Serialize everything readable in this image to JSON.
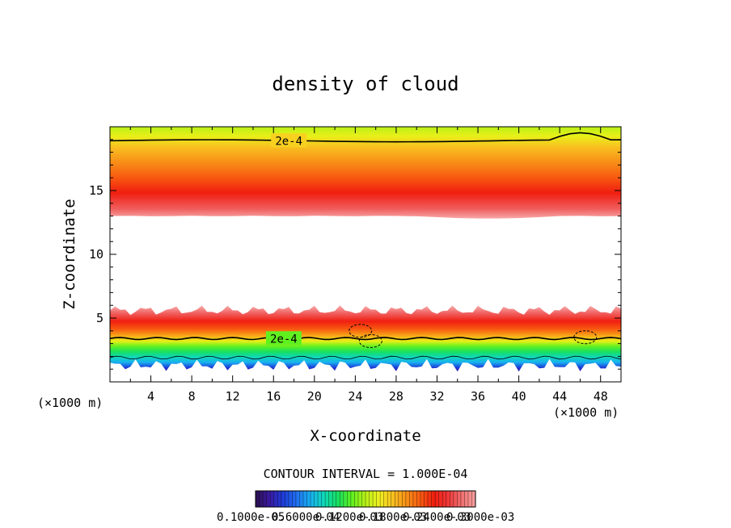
{
  "chart_data": {
    "type": "contour",
    "title": "density of cloud",
    "xlabel": "X-coordinate",
    "ylabel": "Z-coordinate",
    "x_unit": "(×1000 m)",
    "z_unit": "(×1000 m)",
    "xlim": [
      0,
      50
    ],
    "ylim": [
      0,
      20
    ],
    "x_ticks": [
      4,
      8,
      12,
      16,
      20,
      24,
      28,
      32,
      36,
      40,
      44,
      48
    ],
    "y_ticks": [
      5,
      10,
      15
    ],
    "contour_interval_text": "CONTOUR INTERVAL = 1.000E-04",
    "contour_labels": [
      "2e-4",
      "2e-4"
    ],
    "colorbar_labels_text": "0.1000e-05",
    "colorbar_labels_overlap": [
      "0.6000e-04",
      "0.1200e-03",
      "0.1800e-03",
      "0.2400e-03",
      "0.3000e-03"
    ],
    "colorbar_range": [
      1e-06,
      0.0003
    ],
    "bands": [
      {
        "name": "upper-cloud-layer",
        "z_bottom": 13.0,
        "z_peak": 15.0,
        "z_top": 20.0,
        "contour_2e-4_z": 18.9
      },
      {
        "name": "lower-cloud-layer",
        "z_bottom": 1.0,
        "z_peak": 4.8,
        "z_top": 5.8,
        "contour_2e-4_z": 3.4
      }
    ],
    "colormap": [
      "#2a1050",
      "#3a1aa0",
      "#1e3cd8",
      "#2070f0",
      "#18b0f0",
      "#10d8b8",
      "#18e060",
      "#60f020",
      "#b8f018",
      "#f0f020",
      "#f8c020",
      "#f89018",
      "#f85a10",
      "#f01e10",
      "#f03838",
      "#f07070",
      "#f8a0a0"
    ]
  }
}
